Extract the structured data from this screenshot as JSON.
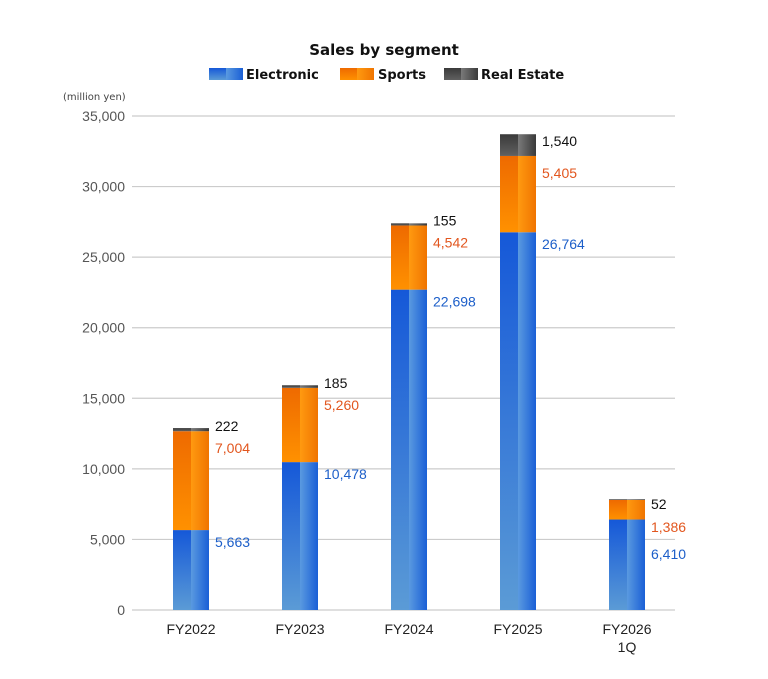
{
  "chart_data": {
    "type": "bar",
    "stacked": true,
    "title": "Sales by segment",
    "unit_label": "(million yen)",
    "xlabel": "",
    "ylabel": "",
    "ylim": [
      0,
      35000
    ],
    "yticks": [
      0,
      5000,
      10000,
      15000,
      20000,
      25000,
      30000,
      35000
    ],
    "ytick_labels": [
      "0",
      "5,000",
      "10,000",
      "15,000",
      "20,000",
      "25,000",
      "30,000",
      "35,000"
    ],
    "grid": true,
    "legend_position": "top-center",
    "categories": [
      {
        "line1": "FY2022",
        "line2": ""
      },
      {
        "line1": "FY2023",
        "line2": ""
      },
      {
        "line1": "FY2024",
        "line2": ""
      },
      {
        "line1": "FY2025",
        "line2": ""
      },
      {
        "line1": "FY2026",
        "line2": "1Q"
      }
    ],
    "series": [
      {
        "name": "Electronic",
        "color": "#1a5fd6",
        "label_color": "#1d5fc9",
        "values": [
          5663,
          10478,
          22698,
          26764,
          6410
        ],
        "labels": [
          "5,663",
          "10,478",
          "22,698",
          "26,764",
          "6,410"
        ]
      },
      {
        "name": "Sports",
        "color": "#f57c00",
        "label_color": "#e2561e",
        "values": [
          7004,
          5260,
          4542,
          5405,
          1386
        ],
        "labels": [
          "7,004",
          "5,260",
          "4,542",
          "5,405",
          "1,386"
        ]
      },
      {
        "name": "Real Estate",
        "color": "#4a4a4a",
        "label_color": "#111111",
        "values": [
          222,
          185,
          155,
          1540,
          52
        ],
        "labels": [
          "222",
          "185",
          "155",
          "1,540",
          "52"
        ]
      }
    ]
  }
}
